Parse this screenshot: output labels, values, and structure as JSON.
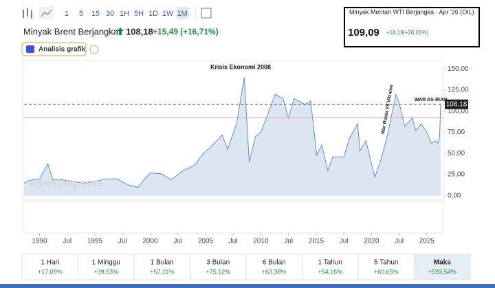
{
  "toolbar": {
    "ranges": [
      "1",
      "5",
      "15",
      "30",
      "1H",
      "5H",
      "1D",
      "1W",
      "1M"
    ]
  },
  "header": {
    "title": "Minyak Brent Berjangka",
    "price": "108,18",
    "change": "+15,49",
    "change_pct": "(+16,71%)",
    "analysis": "Analisis grafik"
  },
  "inset": {
    "title": "Minyak Mentah WTI Berjangka - Apr '26 (OIL)",
    "price": "109,09",
    "change": "+18,19",
    "change_pct": "(+20,01%)"
  },
  "chart_data": {
    "type": "area",
    "annotations": [
      "Krisis Ekonomi 2008",
      "War Rusia VS Ukraine",
      "WAR AS-IRAN"
    ],
    "watermark": "Investing.com",
    "color": "#5b8fc7",
    "x": [
      1988.6,
      1989,
      1990,
      1990.75,
      1991.2,
      1992,
      1993,
      1994,
      1995,
      1996,
      1997,
      1998,
      1998.9,
      1999.5,
      2000,
      2001,
      2001.9,
      2002.5,
      2003,
      2004,
      2004.8,
      2005.5,
      2006.5,
      2007,
      2007.8,
      2008.5,
      2008.95,
      2009.5,
      2010,
      2011.3,
      2012,
      2012.5,
      2013,
      2014,
      2014.5,
      2015.05,
      2015.5,
      2016.05,
      2016.5,
      2017.5,
      2018,
      2018.75,
      2018.95,
      2019.5,
      2020.3,
      2020.9,
      2021.5,
      2022.2,
      2022.5,
      2023,
      2023.7,
      2024,
      2024.5,
      2025,
      2025.4,
      2025.8,
      2026,
      2026.15,
      2026.25
    ],
    "values": [
      15,
      18,
      20,
      38,
      19,
      19,
      17,
      15,
      17,
      20,
      20,
      13,
      10,
      20,
      27,
      26,
      19,
      25,
      30,
      36,
      50,
      58,
      72,
      55,
      85,
      140,
      40,
      70,
      75,
      120,
      115,
      92,
      115,
      108,
      112,
      48,
      60,
      30,
      46,
      46,
      68,
      85,
      53,
      65,
      22,
      45,
      75,
      120,
      110,
      82,
      92,
      77,
      85,
      75,
      62,
      65,
      62,
      70,
      108.18
    ],
    "reference_line": 92.69,
    "xlim": [
      1988.6,
      2026.5
    ],
    "ylim": [
      -5,
      160
    ],
    "yticks": [
      {
        "value": 0,
        "label": "0,00"
      },
      {
        "value": 25,
        "label": "25,00"
      },
      {
        "value": 50,
        "label": "50,00"
      },
      {
        "value": 75,
        "label": "75,00"
      },
      {
        "value": 100,
        "label": "100,00"
      },
      {
        "value": 125,
        "label": "125,00"
      },
      {
        "value": 150,
        "label": "150,00"
      }
    ],
    "xticks": [
      1990,
      {
        "value": 1992.5,
        "label": "Jul"
      },
      1995,
      {
        "value": 1997.5,
        "label": "Jul"
      },
      2000,
      {
        "value": 2002.5,
        "label": "Jul"
      },
      2005,
      {
        "value": 2007.5,
        "label": "Jul"
      },
      2010,
      {
        "value": 2012.5,
        "label": "Jul"
      },
      2015,
      {
        "value": 2017.5,
        "label": "Jul"
      },
      2020,
      {
        "value": 2022.5,
        "label": "Jul"
      },
      2025
    ]
  },
  "periods": [
    {
      "label": "1 Hari",
      "change": "+17,09%"
    },
    {
      "label": "1 Minggu",
      "change": "+39,53%"
    },
    {
      "label": "1 Bulan",
      "change": "+57,11%"
    },
    {
      "label": "3 Bulan",
      "change": "+75,12%"
    },
    {
      "label": "6 Bulan",
      "change": "+63,38%"
    },
    {
      "label": "1 Tahun",
      "change": "+54,16%"
    },
    {
      "label": "5 Tahun",
      "change": "+60,65%"
    },
    {
      "label": "Maks",
      "change": "+593,54%"
    }
  ]
}
